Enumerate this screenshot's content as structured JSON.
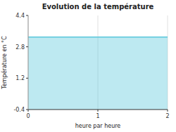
{
  "chart_data": {
    "type": "area",
    "title": "Evolution de la température",
    "x_label": "heure par heure",
    "y_label": "Température en °C",
    "x": [
      0,
      2
    ],
    "values": [
      3.3,
      3.3
    ],
    "color": "#5bc8dc",
    "xlim": [
      0,
      2
    ],
    "ylim": [
      -0.4,
      4.4
    ],
    "xticks": [
      0,
      1,
      2
    ],
    "yticks": [
      -0.4,
      1.2,
      2.8,
      4.4
    ],
    "grid": "x"
  }
}
